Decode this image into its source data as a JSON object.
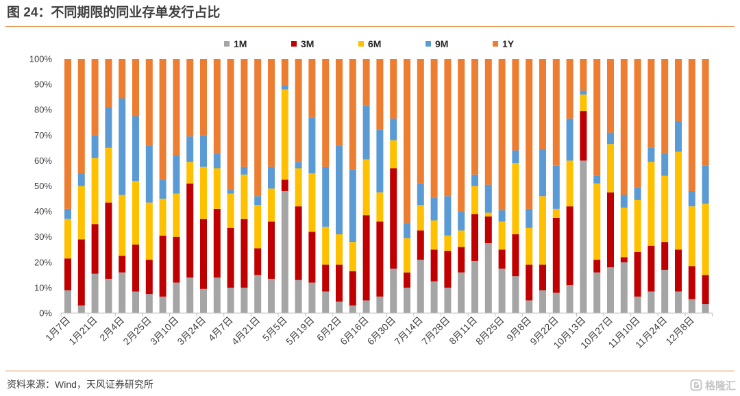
{
  "title": "图 24：不同期限的同业存单发行占比",
  "source": "资料来源：Wind，天风证券研究所",
  "watermark": {
    "text": "格隆汇",
    "icon": "gelonghui-logo-icon"
  },
  "chart_data": {
    "type": "bar",
    "stacked": true,
    "legend": "top",
    "grid": false,
    "ylim": [
      0,
      100
    ],
    "yticks": [
      0,
      10,
      20,
      30,
      40,
      50,
      60,
      70,
      80,
      90,
      100
    ],
    "ytick_labels": [
      "0%",
      "10%",
      "20%",
      "30%",
      "40%",
      "50%",
      "60%",
      "70%",
      "80%",
      "90%",
      "100%"
    ],
    "categories": [
      "1月7日",
      "",
      "1月21日",
      "",
      "2月4日",
      "",
      "2月25日",
      "",
      "3月10日",
      "",
      "3月24日",
      "",
      "4月7日",
      "",
      "4月21日",
      "",
      "5月5日",
      "",
      "5月19日",
      "",
      "6月2日",
      "",
      "6月16日",
      "",
      "6月30日",
      "",
      "7月14日",
      "",
      "7月28日",
      "",
      "8月11日",
      "",
      "8月25日",
      "",
      "9月8日",
      "",
      "9月22日",
      "",
      "10月13日",
      "",
      "10月27日",
      "",
      "11月10日",
      "",
      "11月24日",
      "",
      "12月8日",
      ""
    ],
    "series": [
      {
        "name": "1M",
        "color": "#A5A5A5",
        "values": [
          9,
          3,
          15.5,
          13.5,
          16,
          8.5,
          7.5,
          6.5,
          12,
          14,
          9.5,
          14,
          10,
          10,
          15,
          13.5,
          48,
          13,
          12,
          8.5,
          4.5,
          3,
          5,
          6.5,
          17.5,
          10,
          21,
          12.5,
          10,
          16,
          20.5,
          27.5,
          17.5,
          14.5,
          5,
          9,
          8,
          11,
          60,
          16,
          18,
          20,
          6.5,
          8.5,
          17,
          8.5,
          5.5,
          3.5
        ]
      },
      {
        "name": "3M",
        "color": "#C00000",
        "values": [
          12.5,
          26,
          19.5,
          30,
          6.5,
          18.5,
          13.5,
          24,
          18,
          37,
          27.5,
          27,
          23.5,
          27,
          10.5,
          22.5,
          4.5,
          29,
          20,
          10.5,
          14.5,
          13.5,
          33.5,
          29.5,
          39.5,
          6,
          11.5,
          12.5,
          14.5,
          10,
          18.5,
          10.5,
          7.5,
          16.5,
          14,
          10,
          29.5,
          31,
          19.5,
          5,
          29.5,
          2,
          17.5,
          18,
          11,
          16.5,
          13,
          11.5
        ]
      },
      {
        "name": "6M",
        "color": "#FFC000",
        "values": [
          15.5,
          21,
          26,
          21.5,
          24,
          25,
          22.5,
          14.5,
          17,
          8.5,
          20.5,
          16,
          13.5,
          17.5,
          17,
          13,
          35.5,
          15,
          23,
          15,
          12,
          11.5,
          22,
          11.5,
          11,
          13.5,
          10,
          11.5,
          6,
          6.5,
          11,
          1.5,
          11,
          28,
          14.5,
          27,
          3.5,
          18,
          6.5,
          30,
          19,
          19.5,
          20.5,
          33,
          26,
          38.5,
          23.5,
          28
        ]
      },
      {
        "name": "9M",
        "color": "#5B9BD5",
        "values": [
          4,
          5,
          9,
          16,
          38,
          25.5,
          22.5,
          7.5,
          15,
          10,
          12.5,
          6,
          1.5,
          3,
          3.5,
          8.5,
          1.5,
          2.5,
          22,
          23.5,
          35,
          28.5,
          21,
          24.5,
          8.5,
          6,
          8.5,
          9,
          15.5,
          7.5,
          4.5,
          11,
          4.5,
          5,
          7.5,
          18.5,
          17,
          16.5,
          1.5,
          3,
          4.5,
          5,
          5,
          5.5,
          9,
          12,
          6,
          15
        ]
      },
      {
        "name": "1Y",
        "color": "#ED7D31",
        "values": [
          59,
          45,
          30,
          19,
          15.5,
          22.5,
          34,
          47.5,
          38,
          30.5,
          30,
          37,
          51.5,
          42.5,
          54,
          42.5,
          10.5,
          40.5,
          23,
          42.5,
          34,
          43.5,
          18.5,
          28,
          23.5,
          64.5,
          49,
          54.5,
          54,
          60,
          45.5,
          49.5,
          59.5,
          36,
          59,
          35.5,
          42,
          23.5,
          12.5,
          46,
          29,
          53.5,
          50.5,
          35,
          37,
          24.5,
          52,
          42
        ]
      }
    ]
  }
}
